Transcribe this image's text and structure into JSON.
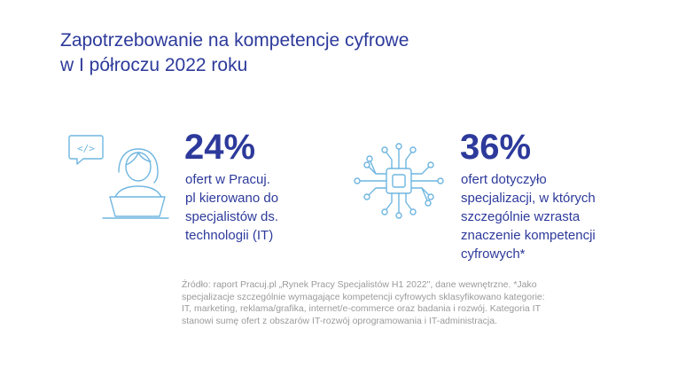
{
  "title": {
    "line1": "Zapotrzebowanie na kompetencje cyfrowe",
    "line2": "w I półroczu 2022 roku"
  },
  "stats": [
    {
      "value": "24%",
      "description": [
        "ofert w Pracuj.",
        "pl kierowano do",
        "specjalistów ds.",
        "technologii (IT)"
      ]
    },
    {
      "value": "36%",
      "description": [
        "ofert dotyczyło",
        "specjalizacji, w których",
        "szczególnie wzrasta",
        "znaczenie kompetencji",
        "cyfrowych*"
      ]
    }
  ],
  "code_bubble_text": "</>",
  "source": [
    "Źródło: raport Pracuj.pl „Rynek Pracy Specjalistów H1 2022\", dane wewnętrzne. *Jako",
    "specjalizacje szczególnie wymagające kompetencji cyfrowych sklasyfikowano kategorie:",
    "IT, marketing, reklama/grafika, internet/e-commerce oraz badania i rozwój. Kategoria IT",
    "stanowi sumę ofert z obszarów IT-rozwój oprogramowania i IT-administracja."
  ],
  "colors": {
    "heading": "#2d3a9b",
    "icon_stroke": "#6fb6e0",
    "source_text": "#9a9a9a"
  },
  "icons": [
    "developer-at-laptop-icon",
    "circuit-chip-icon"
  ]
}
